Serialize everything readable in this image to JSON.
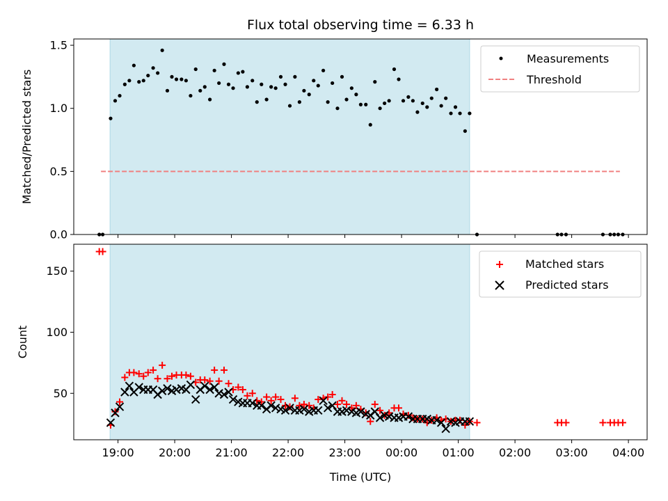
{
  "chart_data": {
    "title": "Flux total observing time = 6.33 h",
    "xlabel": "Time (UTC)",
    "x_ticks": [
      "19:00",
      "20:00",
      "21:00",
      "22:00",
      "23:00",
      "00:00",
      "01:00",
      "02:00",
      "03:00",
      "04:00"
    ],
    "x_tick_hours": [
      0,
      1,
      2,
      3,
      4,
      5,
      6,
      7,
      8,
      9
    ],
    "x_range_hours": [
      -0.78,
      9.33
    ],
    "shaded_span_hours": [
      -0.14,
      6.2
    ],
    "shade_color": "#add8e6",
    "panels": [
      {
        "type": "scatter",
        "ylabel": "Matched/Predicted stars",
        "ylim": [
          0,
          1.55
        ],
        "y_ticks": [
          0.0,
          0.5,
          1.0,
          1.5
        ],
        "y_tick_labels": [
          "0.0",
          "0.5",
          "1.0",
          "1.5"
        ],
        "legend_position": "upper right",
        "threshold": {
          "name": "Threshold",
          "value": 0.5,
          "x_range_hours": [
            -0.3,
            8.85
          ],
          "color": "#f08080"
        },
        "series": [
          {
            "name": "Measurements",
            "color": "#000000",
            "marker": "dot",
            "x": [
              -0.33,
              -0.27,
              -0.13,
              -0.05,
              0.03,
              0.12,
              0.2,
              0.28,
              0.37,
              0.45,
              0.53,
              0.62,
              0.7,
              0.78,
              0.87,
              0.95,
              1.03,
              1.12,
              1.2,
              1.28,
              1.37,
              1.45,
              1.53,
              1.62,
              1.7,
              1.78,
              1.87,
              1.95,
              2.03,
              2.12,
              2.2,
              2.28,
              2.37,
              2.45,
              2.53,
              2.62,
              2.7,
              2.78,
              2.87,
              2.95,
              3.03,
              3.12,
              3.2,
              3.28,
              3.37,
              3.45,
              3.53,
              3.62,
              3.7,
              3.78,
              3.87,
              3.95,
              4.03,
              4.12,
              4.2,
              4.28,
              4.37,
              4.45,
              4.53,
              4.62,
              4.7,
              4.78,
              4.87,
              4.95,
              5.03,
              5.12,
              5.2,
              5.28,
              5.37,
              5.45,
              5.53,
              5.62,
              5.7,
              5.78,
              5.87,
              5.95,
              6.03,
              6.12,
              6.2,
              6.33,
              7.75,
              7.82,
              7.9,
              8.55,
              8.68,
              8.75,
              8.82,
              8.9
            ],
            "y": [
              0.0,
              0.0,
              0.92,
              1.06,
              1.1,
              1.19,
              1.22,
              1.34,
              1.21,
              1.22,
              1.26,
              1.32,
              1.28,
              1.46,
              1.14,
              1.25,
              1.23,
              1.23,
              1.22,
              1.1,
              1.31,
              1.14,
              1.17,
              1.07,
              1.3,
              1.2,
              1.35,
              1.19,
              1.16,
              1.28,
              1.29,
              1.17,
              1.22,
              1.05,
              1.19,
              1.07,
              1.17,
              1.16,
              1.25,
              1.19,
              1.02,
              1.25,
              1.05,
              1.14,
              1.11,
              1.22,
              1.18,
              1.3,
              1.05,
              1.2,
              1.0,
              1.25,
              1.07,
              1.16,
              1.11,
              1.03,
              1.03,
              0.87,
              1.21,
              1.0,
              1.04,
              1.06,
              1.31,
              1.23,
              1.06,
              1.09,
              1.06,
              0.97,
              1.04,
              1.01,
              1.08,
              1.15,
              1.02,
              1.08,
              0.96,
              1.01,
              0.96,
              0.82,
              0.96,
              0.0,
              0.0,
              0.0,
              0.0,
              0.0,
              0.0,
              0.0,
              0.0,
              0.0
            ]
          }
        ]
      },
      {
        "type": "scatter",
        "ylabel": "Count",
        "ylim": [
          12,
          172
        ],
        "y_ticks": [
          50,
          100,
          150
        ],
        "y_tick_labels": [
          "50",
          "100",
          "150"
        ],
        "legend_position": "upper right",
        "series": [
          {
            "name": "Matched stars",
            "color": "#ff0000",
            "marker": "plus",
            "x": [
              -0.33,
              -0.27,
              -0.13,
              -0.05,
              0.03,
              0.12,
              0.2,
              0.28,
              0.37,
              0.45,
              0.53,
              0.62,
              0.7,
              0.78,
              0.87,
              0.95,
              1.03,
              1.12,
              1.2,
              1.28,
              1.37,
              1.45,
              1.53,
              1.62,
              1.7,
              1.78,
              1.87,
              1.95,
              2.03,
              2.12,
              2.2,
              2.28,
              2.37,
              2.45,
              2.53,
              2.62,
              2.7,
              2.78,
              2.87,
              2.95,
              3.03,
              3.12,
              3.2,
              3.28,
              3.37,
              3.45,
              3.53,
              3.62,
              3.7,
              3.78,
              3.87,
              3.95,
              4.03,
              4.12,
              4.2,
              4.28,
              4.37,
              4.45,
              4.53,
              4.62,
              4.7,
              4.78,
              4.87,
              4.95,
              5.03,
              5.12,
              5.2,
              5.28,
              5.37,
              5.45,
              5.53,
              5.62,
              5.7,
              5.78,
              5.87,
              5.95,
              6.03,
              6.12,
              6.2,
              6.33,
              7.75,
              7.82,
              7.9,
              8.55,
              8.68,
              8.75,
              8.82,
              8.9
            ],
            "y": [
              166,
              166,
              24,
              35,
              43,
              63,
              67,
              67,
              66,
              64,
              67,
              69,
              62,
              73,
              62,
              64,
              65,
              65,
              65,
              64,
              59,
              61,
              61,
              60,
              69,
              60,
              69,
              58,
              53,
              55,
              53,
              48,
              50,
              44,
              43,
              47,
              44,
              47,
              45,
              40,
              39,
              46,
              40,
              41,
              40,
              38,
              45,
              46,
              47,
              49,
              41,
              44,
              41,
              38,
              40,
              37,
              34,
              27,
              41,
              36,
              32,
              34,
              38,
              38,
              33,
              32,
              30,
              29,
              29,
              26,
              28,
              30,
              28,
              29,
              27,
              28,
              28,
              24,
              27,
              26,
              26,
              26,
              26,
              26,
              26,
              26,
              26,
              26
            ]
          },
          {
            "name": "Predicted stars",
            "color": "#000000",
            "marker": "x",
            "x": [
              -0.13,
              -0.05,
              0.03,
              0.12,
              0.2,
              0.28,
              0.37,
              0.45,
              0.53,
              0.62,
              0.7,
              0.78,
              0.87,
              0.95,
              1.03,
              1.12,
              1.2,
              1.28,
              1.37,
              1.45,
              1.53,
              1.62,
              1.7,
              1.78,
              1.87,
              1.95,
              2.03,
              2.12,
              2.2,
              2.28,
              2.37,
              2.45,
              2.53,
              2.62,
              2.7,
              2.78,
              2.87,
              2.95,
              3.03,
              3.12,
              3.2,
              3.28,
              3.37,
              3.45,
              3.53,
              3.62,
              3.7,
              3.78,
              3.87,
              3.95,
              4.03,
              4.12,
              4.2,
              4.28,
              4.37,
              4.45,
              4.53,
              4.62,
              4.7,
              4.78,
              4.87,
              4.95,
              5.03,
              5.12,
              5.2,
              5.28,
              5.37,
              5.45,
              5.53,
              5.62,
              5.7,
              5.78,
              5.87,
              5.95,
              6.03,
              6.12,
              6.2
            ],
            "y": [
              26,
              34,
              39,
              51,
              56,
              51,
              55,
              53,
              53,
              53,
              49,
              52,
              54,
              52,
              53,
              54,
              53,
              57,
              45,
              53,
              56,
              53,
              55,
              50,
              49,
              51,
              45,
              43,
              42,
              42,
              42,
              40,
              40,
              37,
              40,
              38,
              37,
              36,
              38,
              36,
              36,
              37,
              35,
              36,
              36,
              44,
              38,
              40,
              35,
              35,
              36,
              35,
              34,
              35,
              33,
              32,
              35,
              30,
              32,
              31,
              30,
              30,
              31,
              31,
              29,
              29,
              29,
              29,
              28,
              28,
              26,
              21,
              27,
              26,
              27,
              27,
              27
            ]
          }
        ]
      }
    ]
  }
}
